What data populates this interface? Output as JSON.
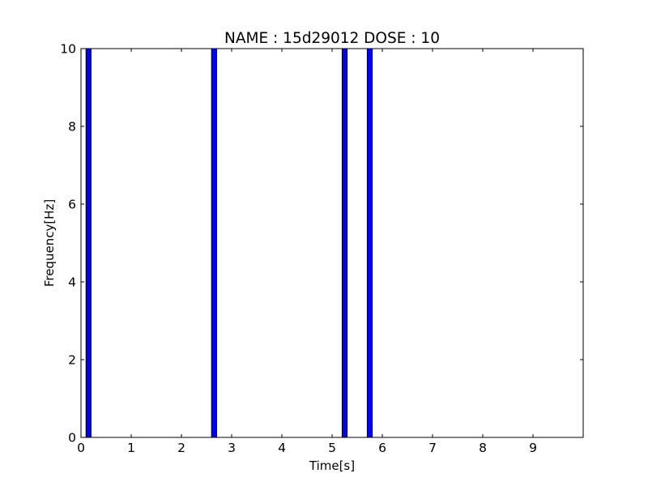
{
  "chart_data": {
    "type": "bar",
    "title": "NAME : 15d29012 DOSE : 10",
    "xlabel": "Time[s]",
    "ylabel": "Frequency[Hz]",
    "xlim": [
      0,
      10
    ],
    "ylim": [
      0,
      10
    ],
    "xticks": [
      "0",
      "1",
      "2",
      "3",
      "4",
      "5",
      "6",
      "7",
      "8",
      "9"
    ],
    "yticks": [
      "0",
      "2",
      "4",
      "6",
      "8",
      "10"
    ],
    "bar_width": 0.1,
    "bars": [
      {
        "x": 0.1,
        "value": 10
      },
      {
        "x": 2.6,
        "value": 10
      },
      {
        "x": 5.2,
        "value": 10
      },
      {
        "x": 5.7,
        "value": 10
      }
    ],
    "bar_color": "#0000ff",
    "edge_color": "#000000",
    "grid": false
  }
}
